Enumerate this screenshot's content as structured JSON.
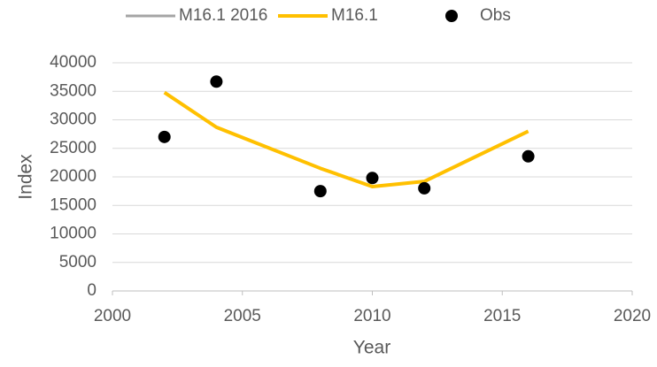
{
  "chart_data": {
    "type": "line",
    "x_label": "Year",
    "y_label": "Index",
    "xlim": [
      2000,
      2020
    ],
    "xticks": [
      2000,
      2005,
      2010,
      2015,
      2020
    ],
    "ylim": [
      0,
      40000
    ],
    "yticks": [
      0,
      5000,
      10000,
      15000,
      20000,
      25000,
      30000,
      35000,
      40000
    ],
    "grid": true,
    "legend": "top",
    "series": [
      {
        "name": "M16.1 2016",
        "color": "#a5a5a5",
        "style": "line",
        "x": [
          2002,
          2004,
          2008,
          2010,
          2012,
          2016
        ],
        "values": [
          null,
          null,
          null,
          null,
          null,
          null
        ]
      },
      {
        "name": "M16.1",
        "color": "#ffc000",
        "style": "line",
        "x": [
          2002,
          2004,
          2008,
          2010,
          2012,
          2016
        ],
        "values": [
          34800,
          28700,
          21500,
          18300,
          19200,
          28000
        ]
      },
      {
        "name": "Obs",
        "color": "#000000",
        "style": "marker",
        "x": [
          2002,
          2004,
          2008,
          2010,
          2012,
          2016
        ],
        "values": [
          27000,
          36700,
          17500,
          19800,
          18000,
          23600
        ]
      }
    ]
  }
}
